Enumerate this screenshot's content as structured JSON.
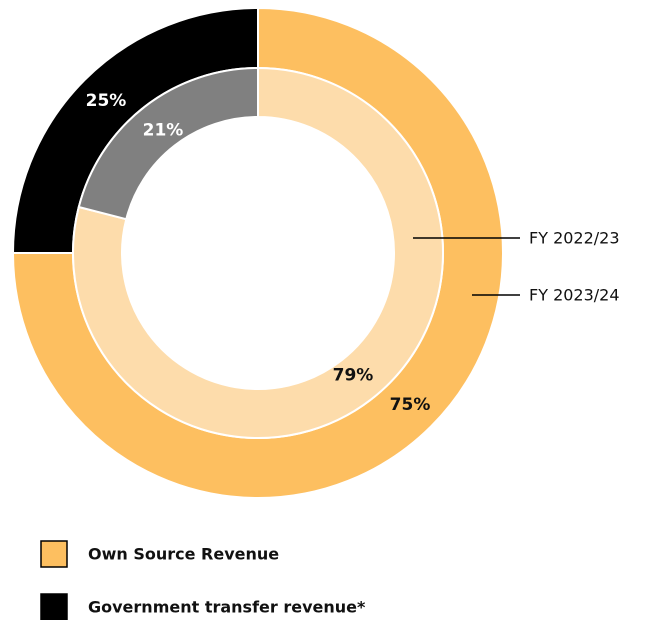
{
  "chart_data": {
    "type": "donut",
    "categories": [
      "Own Source Revenue",
      "Government transfer revenue*"
    ],
    "series": [
      {
        "name": "FY 2023/24",
        "colors": [
          "#fdbf60",
          "#000000"
        ],
        "values": [
          75,
          25
        ],
        "value_labels": [
          "75%",
          "25%"
        ]
      },
      {
        "name": "FY 2022/23",
        "colors": [
          "#fddcab",
          "#808080"
        ],
        "values": [
          79,
          21
        ],
        "value_labels": [
          "79%",
          "21%"
        ]
      }
    ],
    "legend": "bottom-left"
  }
}
